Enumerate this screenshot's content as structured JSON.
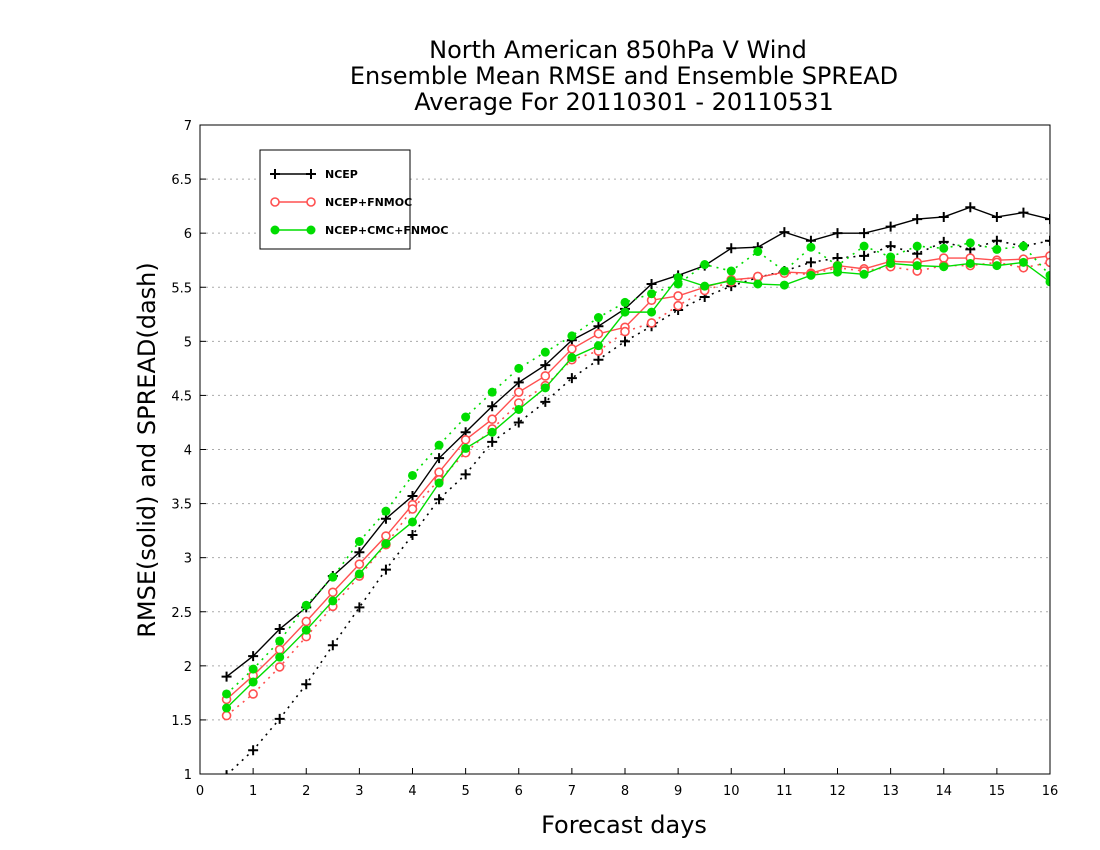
{
  "chart_data": {
    "type": "line",
    "title": [
      "North American 850hPa V Wind",
      "Ensemble Mean RMSE and Ensemble SPREAD",
      "Average For 20110301 - 20110531"
    ],
    "xlabel": "Forecast days",
    "ylabel": "RMSE(solid) and SPREAD(dash)",
    "xlim": [
      0,
      16
    ],
    "ylim": [
      1,
      7
    ],
    "xticks": [
      "0",
      "1",
      "2",
      "3",
      "4",
      "5",
      "6",
      "7",
      "8",
      "9",
      "10",
      "11",
      "12",
      "13",
      "14",
      "15",
      "16"
    ],
    "yticks": [
      "1",
      "1.5",
      "2",
      "2.5",
      "3",
      "3.5",
      "4",
      "4.5",
      "5",
      "5.5",
      "6",
      "6.5",
      "7"
    ],
    "grid": "horizontal dotted",
    "legend_position": "top-left",
    "x": [
      0.5,
      1,
      1.5,
      2,
      2.5,
      3,
      3.5,
      4,
      4.5,
      5,
      5.5,
      6,
      6.5,
      7,
      7.5,
      8,
      8.5,
      9,
      9.5,
      10,
      10.5,
      11,
      11.5,
      12,
      12.5,
      13,
      13.5,
      14,
      14.5,
      15,
      15.5,
      16
    ],
    "series": [
      {
        "name": "NCEP",
        "color": "#000000",
        "marker": "plus",
        "rmse": [
          1.9,
          2.09,
          2.34,
          2.54,
          2.83,
          3.05,
          3.36,
          3.57,
          3.92,
          4.16,
          4.4,
          4.62,
          4.78,
          5.01,
          5.14,
          5.3,
          5.53,
          5.61,
          5.7,
          5.86,
          5.87,
          6.01,
          5.93,
          6.0,
          6.0,
          6.06,
          6.13,
          6.15,
          6.24,
          6.15,
          6.19,
          6.13
        ],
        "spread": [
          0.99,
          1.22,
          1.51,
          1.83,
          2.19,
          2.54,
          2.89,
          3.21,
          3.54,
          3.77,
          4.07,
          4.25,
          4.44,
          4.66,
          4.83,
          5.0,
          5.14,
          5.29,
          5.41,
          5.51,
          5.59,
          5.65,
          5.73,
          5.77,
          5.79,
          5.88,
          5.81,
          5.92,
          5.85,
          5.93,
          5.88,
          5.93
        ]
      },
      {
        "name": "NCEP+FNMOC",
        "color": "#ff5050",
        "marker": "open-circle",
        "rmse": [
          1.69,
          1.91,
          2.15,
          2.41,
          2.68,
          2.94,
          3.2,
          3.49,
          3.79,
          4.09,
          4.28,
          4.53,
          4.68,
          4.93,
          5.07,
          5.13,
          5.38,
          5.42,
          5.5,
          5.57,
          5.59,
          5.64,
          5.63,
          5.7,
          5.67,
          5.74,
          5.73,
          5.77,
          5.77,
          5.75,
          5.76,
          5.79
        ],
        "spread": [
          1.54,
          1.74,
          1.99,
          2.27,
          2.55,
          2.83,
          3.12,
          3.45,
          3.72,
          3.97,
          4.19,
          4.43,
          4.59,
          4.83,
          4.91,
          5.09,
          5.17,
          5.33,
          5.47,
          5.55,
          5.6,
          5.63,
          5.62,
          5.68,
          5.65,
          5.69,
          5.65,
          5.7,
          5.7,
          5.73,
          5.68,
          5.73
        ]
      },
      {
        "name": "NCEP+CMC+FNMOC",
        "color": "#00dd00",
        "marker": "filled-circle",
        "rmse": [
          1.61,
          1.85,
          2.08,
          2.33,
          2.6,
          2.85,
          3.13,
          3.33,
          3.69,
          4.01,
          4.16,
          4.37,
          4.57,
          4.85,
          4.96,
          5.27,
          5.27,
          5.59,
          5.51,
          5.56,
          5.53,
          5.52,
          5.61,
          5.64,
          5.62,
          5.72,
          5.7,
          5.69,
          5.72,
          5.7,
          5.73,
          5.55
        ],
        "spread": [
          1.74,
          1.97,
          2.23,
          2.56,
          2.82,
          3.15,
          3.43,
          3.76,
          4.04,
          4.3,
          4.53,
          4.75,
          4.9,
          5.05,
          5.22,
          5.36,
          5.44,
          5.53,
          5.71,
          5.65,
          5.83,
          5.65,
          5.87,
          5.7,
          5.88,
          5.78,
          5.88,
          5.86,
          5.91,
          5.85,
          5.88,
          5.61
        ]
      }
    ]
  }
}
